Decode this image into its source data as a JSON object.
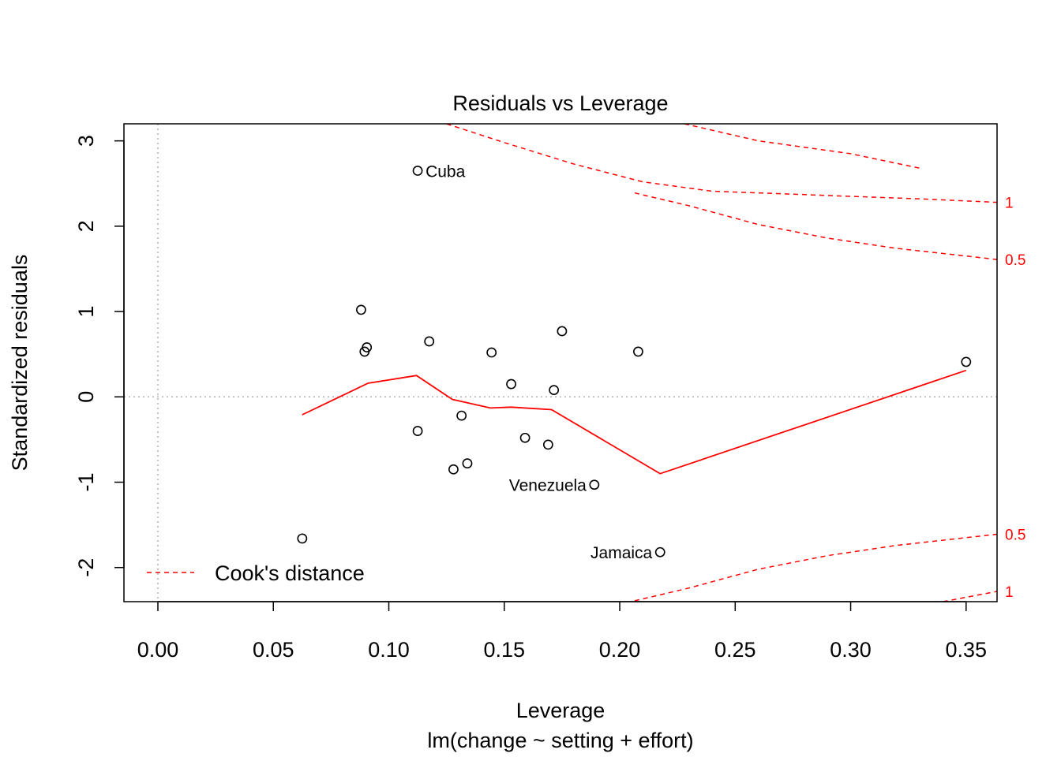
{
  "chart_data": {
    "type": "scatter",
    "title": "Residuals vs Leverage",
    "xlabel": "Leverage",
    "subtitle": "lm(change ~ setting + effort)",
    "ylabel": "Standardized residuals",
    "xlim": [
      -0.0147,
      0.3634
    ],
    "ylim": [
      -2.4,
      3.2
    ],
    "xticks": [
      "0.00",
      "0.05",
      "0.10",
      "0.15",
      "0.20",
      "0.25",
      "0.30",
      "0.35"
    ],
    "yticks": [
      "-2",
      "-1",
      "0",
      "1",
      "2",
      "3"
    ],
    "points": [
      {
        "x": 0.1125,
        "y": 2.65
      },
      {
        "x": 0.088,
        "y": 1.02
      },
      {
        "x": 0.0895,
        "y": 0.53
      },
      {
        "x": 0.0905,
        "y": 0.58
      },
      {
        "x": 0.1175,
        "y": 0.65
      },
      {
        "x": 0.1445,
        "y": 0.52
      },
      {
        "x": 0.175,
        "y": 0.77
      },
      {
        "x": 0.208,
        "y": 0.53
      },
      {
        "x": 0.35,
        "y": 0.41
      },
      {
        "x": 0.153,
        "y": 0.15
      },
      {
        "x": 0.1715,
        "y": 0.08
      },
      {
        "x": 0.1125,
        "y": -0.4
      },
      {
        "x": 0.1315,
        "y": -0.22
      },
      {
        "x": 0.159,
        "y": -0.48
      },
      {
        "x": 0.169,
        "y": -0.56
      },
      {
        "x": 0.128,
        "y": -0.85
      },
      {
        "x": 0.134,
        "y": -0.78
      },
      {
        "x": 0.189,
        "y": -1.03
      },
      {
        "x": 0.0625,
        "y": -1.66
      },
      {
        "x": 0.2175,
        "y": -1.82
      }
    ],
    "point_labels": [
      {
        "text": "Cuba",
        "x": 0.1125,
        "y": 2.65,
        "side": "right"
      },
      {
        "text": "Venezuela",
        "x": 0.189,
        "y": -1.03,
        "side": "left"
      },
      {
        "text": "Jamaica",
        "x": 0.2175,
        "y": -1.82,
        "side": "left"
      }
    ],
    "smooth_line": {
      "name": "",
      "color": "#ff0000",
      "x": [
        0.0625,
        0.091,
        0.112,
        0.1275,
        0.144,
        0.153,
        0.1705,
        0.2175,
        0.35
      ],
      "y": [
        -0.21,
        0.16,
        0.25,
        -0.03,
        -0.13,
        -0.12,
        -0.15,
        -0.9,
        0.31
      ]
    },
    "cooks_contours": [
      {
        "level": "0.5",
        "label": "0.5",
        "sign": 1,
        "x": [
          0.2065,
          0.23,
          0.26,
          0.29,
          0.32,
          0.35,
          0.3634
        ],
        "y": [
          2.39,
          2.24,
          2.02,
          1.86,
          1.74,
          1.65,
          1.61
        ]
      },
      {
        "level": "0.5",
        "label": "0.5",
        "sign": -1,
        "x": [
          0.2065,
          0.23,
          0.26,
          0.29,
          0.32,
          0.35,
          0.3634
        ],
        "y": [
          -2.39,
          -2.24,
          -2.02,
          -1.86,
          -1.74,
          -1.65,
          -1.61
        ]
      },
      {
        "level": "1",
        "label": "1",
        "sign": 1,
        "x": [
          0.125,
          0.15,
          0.18,
          0.21,
          0.24,
          0.27,
          0.3,
          0.33,
          0.3634
        ],
        "y": [
          3.2,
          2.98,
          2.73,
          2.52,
          2.41,
          2.38,
          2.35,
          2.32,
          2.28
        ]
      },
      {
        "level": "1",
        "label": "1",
        "sign": -1,
        "x": [
          0.34,
          0.3634
        ],
        "y": [
          -2.4,
          -2.28
        ]
      }
    ],
    "upper_one_extension": {
      "x": [
        0.228,
        0.26,
        0.3,
        0.33
      ],
      "y": [
        3.2,
        3.0,
        2.85,
        2.68
      ]
    },
    "legend": {
      "entries": [
        "Cook's distance"
      ],
      "placement": "bottom-left",
      "line_style": "dashed",
      "color": "#ff0000"
    },
    "reference_lines": {
      "h": 0,
      "v": 0,
      "style": "dotted",
      "color": "#b0b0b0"
    },
    "grid": false
  }
}
